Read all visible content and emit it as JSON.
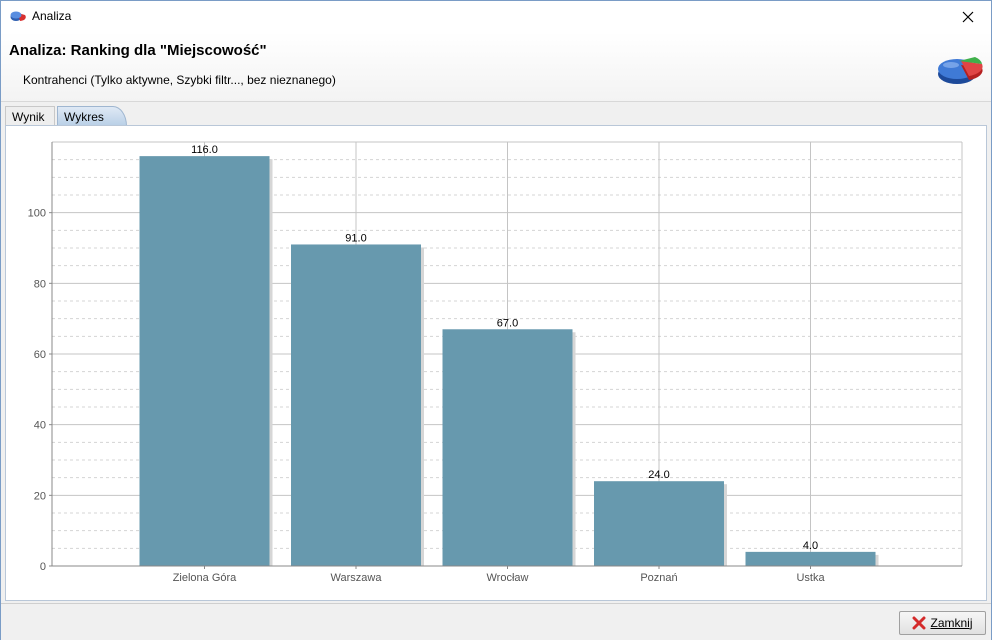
{
  "window": {
    "title": "Analiza",
    "close_icon": "close-icon",
    "app_icon": "pie-chart-icon"
  },
  "header": {
    "title": "Analiza: Ranking dla \"Miejscowość\"",
    "subtitle": "Kontrahenci (Tylko aktywne, Szybki filtr..., bez nieznanego)",
    "icon": "pie-chart-icon"
  },
  "tabs": [
    {
      "label": "Wynik",
      "active": false
    },
    {
      "label": "Wykres",
      "active": true
    }
  ],
  "chart_data": {
    "type": "bar",
    "categories": [
      "Zielona Góra",
      "Warszawa",
      "Wrocław",
      "Poznań",
      "Ustka"
    ],
    "values": [
      116.0,
      91.0,
      67.0,
      24.0,
      4.0
    ],
    "value_labels": [
      "116.0",
      "91.0",
      "67.0",
      "24.0",
      "4.0"
    ],
    "yticks": [
      "0",
      "20",
      "40",
      "60",
      "80",
      "100"
    ],
    "ylim": [
      0,
      120
    ],
    "grid": true,
    "bar_color": "#6799ae"
  },
  "footer": {
    "close_button_label": "Zamknij",
    "close_button_icon": "red-x-icon"
  }
}
